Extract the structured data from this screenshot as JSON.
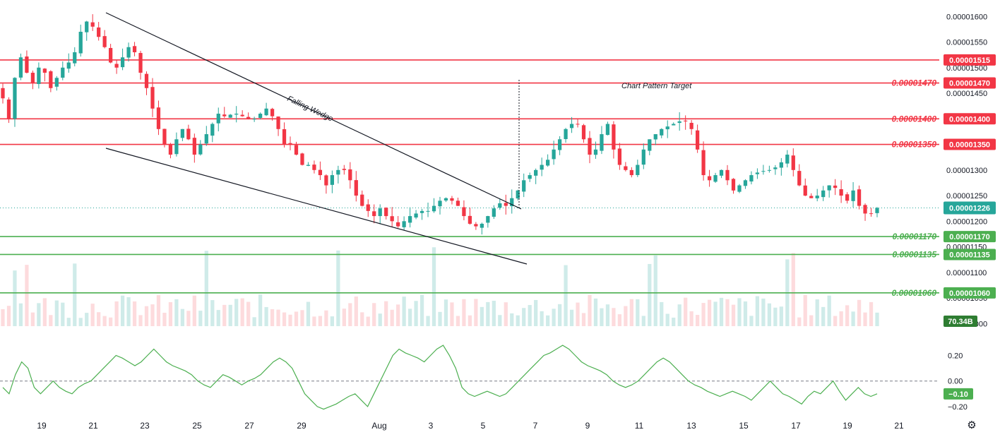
{
  "chart_data": [
    {
      "type": "candlestick",
      "title": "",
      "y_axis_ticks": [
        "0.00001600",
        "0.00001550",
        "0.00001500",
        "0.00001450",
        "0.00001300",
        "0.00001250",
        "0.00001200",
        "0.00001150",
        "0.00001100",
        "0.00001050",
        "0.00001000"
      ],
      "ylim": [
        9.95e-06,
        1.61e-05
      ],
      "x_axis_ticks": [
        "19",
        "21",
        "23",
        "25",
        "27",
        "29",
        "Aug",
        "3",
        "5",
        "7",
        "9",
        "11",
        "13",
        "15",
        "17",
        "19",
        "21"
      ],
      "grid": false,
      "last_price": "0.00001226",
      "volume_badge": "70.34B",
      "resistance_levels": [
        {
          "value": 1.515e-05,
          "label": "0.00001515",
          "show_left_label": false
        },
        {
          "value": 1.47e-05,
          "label": "0.00001470",
          "show_left_label": true
        },
        {
          "value": 1.4e-05,
          "label": "0.00001400",
          "show_left_label": true
        },
        {
          "value": 1.35e-05,
          "label": "0.00001350",
          "show_left_label": true
        }
      ],
      "support_levels": [
        {
          "value": 1.17e-05,
          "label": "0.00001170",
          "show_left_label": true
        },
        {
          "value": 1.135e-05,
          "label": "0.00001135",
          "show_left_label": true
        },
        {
          "value": 1.06e-05,
          "label": "0.00001060",
          "show_left_label": true
        }
      ],
      "annotations": [
        {
          "text": "Falling Wedge"
        },
        {
          "text": "Chart Pattern Target"
        }
      ],
      "close_series": [
        1.44e-05,
        1.4e-05,
        1.48e-05,
        1.52e-05,
        1.49e-05,
        1.47e-05,
        1.5e-05,
        1.49e-05,
        1.46e-05,
        1.48e-05,
        1.5e-05,
        1.51e-05,
        1.53e-05,
        1.57e-05,
        1.59e-05,
        1.58e-05,
        1.56e-05,
        1.54e-05,
        1.51e-05,
        1.5e-05,
        1.52e-05,
        1.54e-05,
        1.53e-05,
        1.49e-05,
        1.46e-05,
        1.42e-05,
        1.38e-05,
        1.35e-05,
        1.33e-05,
        1.36e-05,
        1.38e-05,
        1.36e-05,
        1.33e-05,
        1.35e-05,
        1.37e-05,
        1.39e-05,
        1.41e-05,
        1.405e-05,
        1.408e-05,
        1.41e-05,
        1.405e-05,
        1.4e-05,
        1.4e-05,
        1.41e-05,
        1.42e-05,
        1.405e-05,
        1.38e-05,
        1.35e-05,
        1.35e-05,
        1.33e-05,
        1.31e-05,
        1.31e-05,
        1.3e-05,
        1.29e-05,
        1.27e-05,
        1.29e-05,
        1.3e-05,
        1.3e-05,
        1.28e-05,
        1.25e-05,
        1.23e-05,
        1.22e-05,
        1.21e-05,
        1.225e-05,
        1.21e-05,
        1.2e-05,
        1.19e-05,
        1.2e-05,
        1.21e-05,
        1.215e-05,
        1.22e-05,
        1.22e-05,
        1.23e-05,
        1.24e-05,
        1.245e-05,
        1.24e-05,
        1.23e-05,
        1.21e-05,
        1.195e-05,
        1.19e-05,
        1.195e-05,
        1.21e-05,
        1.225e-05,
        1.235e-05,
        1.23e-05,
        1.245e-05,
        1.26e-05,
        1.28e-05,
        1.29e-05,
        1.3e-05,
        1.31e-05,
        1.32e-05,
        1.34e-05,
        1.36e-05,
        1.38e-05,
        1.39e-05,
        1.39e-05,
        1.36e-05,
        1.33e-05,
        1.34e-05,
        1.37e-05,
        1.39e-05,
        1.34e-05,
        1.31e-05,
        1.3e-05,
        1.29e-05,
        1.31e-05,
        1.34e-05,
        1.36e-05,
        1.37e-05,
        1.38e-05,
        1.385e-05,
        1.39e-05,
        1.395e-05,
        1.395e-05,
        1.38e-05,
        1.34e-05,
        1.29e-05,
        1.28e-05,
        1.29e-05,
        1.3e-05,
        1.28e-05,
        1.26e-05,
        1.27e-05,
        1.28e-05,
        1.29e-05,
        1.295e-05,
        1.298e-05,
        1.3e-05,
        1.305e-05,
        1.315e-05,
        1.33e-05,
        1.3e-05,
        1.27e-05,
        1.25e-05,
        1.245e-05,
        1.25e-05,
        1.26e-05,
        1.27e-05,
        1.265e-05,
        1.25e-05,
        1.24e-05,
        1.26e-05,
        1.23e-05,
        1.215e-05,
        1.215e-05,
        1.226e-05
      ],
      "oscillator": {
        "ylim": [
          -0.25,
          0.33
        ],
        "ticks": [
          "0.20",
          "0.00",
          "−0.20"
        ],
        "zero_line": 0.0,
        "last_value": "−0.10",
        "values": [
          -0.05,
          -0.1,
          0.05,
          0.15,
          0.1,
          -0.05,
          -0.1,
          -0.05,
          0.0,
          -0.05,
          -0.08,
          -0.1,
          -0.05,
          -0.02,
          0.0,
          0.05,
          0.1,
          0.15,
          0.2,
          0.18,
          0.15,
          0.12,
          0.15,
          0.2,
          0.25,
          0.2,
          0.15,
          0.12,
          0.1,
          0.08,
          0.05,
          0.0,
          -0.03,
          -0.05,
          0.0,
          0.05,
          0.03,
          0.0,
          -0.03,
          0.0,
          0.02,
          0.05,
          0.1,
          0.15,
          0.18,
          0.15,
          0.1,
          0.0,
          -0.1,
          -0.15,
          -0.2,
          -0.22,
          -0.2,
          -0.18,
          -0.15,
          -0.12,
          -0.1,
          -0.15,
          -0.2,
          -0.1,
          0.0,
          0.1,
          0.2,
          0.25,
          0.22,
          0.2,
          0.18,
          0.15,
          0.2,
          0.25,
          0.28,
          0.2,
          0.1,
          -0.05,
          -0.1,
          -0.12,
          -0.1,
          -0.08,
          -0.1,
          -0.12,
          -0.1,
          -0.05,
          0.0,
          0.05,
          0.1,
          0.15,
          0.2,
          0.22,
          0.25,
          0.28,
          0.25,
          0.2,
          0.15,
          0.12,
          0.1,
          0.08,
          0.05,
          0.0,
          -0.03,
          -0.05,
          -0.03,
          0.0,
          0.05,
          0.1,
          0.15,
          0.18,
          0.15,
          0.1,
          0.05,
          0.0,
          -0.03,
          -0.05,
          -0.08,
          -0.1,
          -0.12,
          -0.1,
          -0.08,
          -0.1,
          -0.12,
          -0.15,
          -0.1,
          -0.05,
          0.0,
          -0.05,
          -0.1,
          -0.12,
          -0.15,
          -0.18,
          -0.12,
          -0.08,
          -0.1,
          -0.05,
          0.0,
          -0.08,
          -0.15,
          -0.1,
          -0.05,
          -0.1,
          -0.12,
          -0.1
        ]
      }
    }
  ],
  "colors": {
    "up": "#26a69a",
    "down": "#f23645",
    "resistance": "#f23645",
    "support": "#4caf50",
    "oscillator": "#4caf50",
    "trendline": "#131722"
  },
  "icons": {
    "settings": "gear-icon"
  }
}
